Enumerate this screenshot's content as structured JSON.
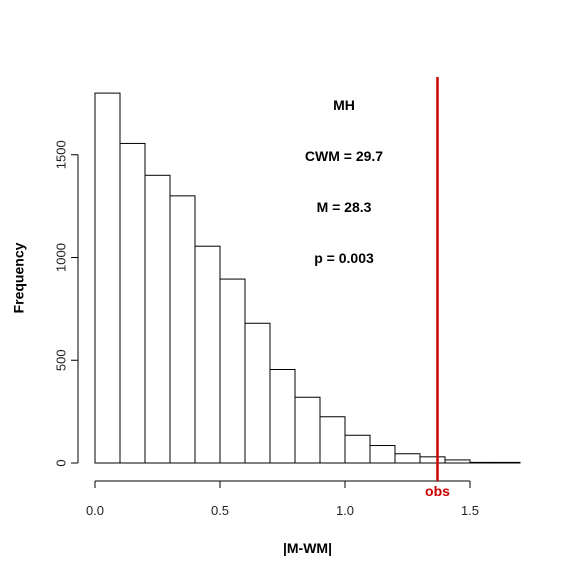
{
  "chart_data": {
    "type": "bar",
    "subtype": "histogram",
    "title": "",
    "xlabel": "|M-WM|",
    "ylabel": "Frequency",
    "xlim": [
      0,
      1.7
    ],
    "ylim": [
      0,
      1800
    ],
    "x_ticks": [
      "0.0",
      "0.5",
      "1.0",
      "1.5"
    ],
    "y_ticks": [
      "0",
      "500",
      "1000",
      "1500"
    ],
    "bin_width": 0.1,
    "bins": [
      {
        "x0": 0.0,
        "x1": 0.1,
        "count": 1800
      },
      {
        "x0": 0.1,
        "x1": 0.2,
        "count": 1555
      },
      {
        "x0": 0.2,
        "x1": 0.3,
        "count": 1400
      },
      {
        "x0": 0.3,
        "x1": 0.4,
        "count": 1300
      },
      {
        "x0": 0.4,
        "x1": 0.5,
        "count": 1055
      },
      {
        "x0": 0.5,
        "x1": 0.6,
        "count": 895
      },
      {
        "x0": 0.6,
        "x1": 0.7,
        "count": 680
      },
      {
        "x0": 0.7,
        "x1": 0.8,
        "count": 455
      },
      {
        "x0": 0.8,
        "x1": 0.9,
        "count": 320
      },
      {
        "x0": 0.9,
        "x1": 1.0,
        "count": 225
      },
      {
        "x0": 1.0,
        "x1": 1.1,
        "count": 135
      },
      {
        "x0": 1.1,
        "x1": 1.2,
        "count": 85
      },
      {
        "x0": 1.2,
        "x1": 1.3,
        "count": 45
      },
      {
        "x0": 1.3,
        "x1": 1.4,
        "count": 30
      },
      {
        "x0": 1.4,
        "x1": 1.5,
        "count": 15
      },
      {
        "x0": 1.5,
        "x1": 1.6,
        "count": 3
      },
      {
        "x0": 1.6,
        "x1": 1.7,
        "count": 3
      }
    ],
    "observed": {
      "x": 1.37,
      "label": "obs",
      "color": "#cc0000"
    },
    "annotations": [
      "MH",
      "CWM = 29.7",
      "M = 28.3",
      "p = 0.003"
    ],
    "grid": false,
    "legend": "none"
  }
}
